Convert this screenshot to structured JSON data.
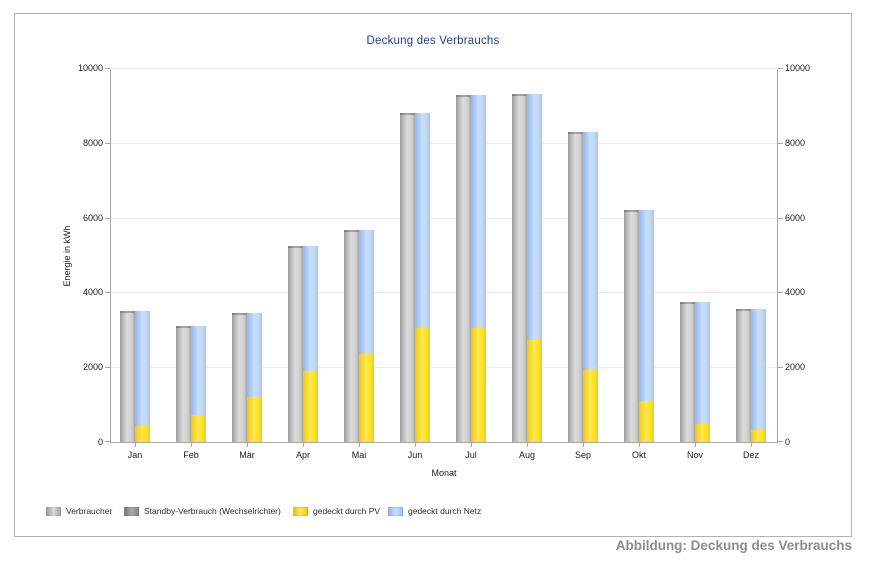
{
  "caption": "Abbildung: Deckung des Verbrauchs",
  "colors": {
    "title": "#1e3c96",
    "caption": "#8c8c8c",
    "verbraucher": "#c3c3c3",
    "standby": "#8a8a8a",
    "pv": "#ffe11a",
    "netz": "#aecdf6",
    "axis": "#a8a8a8",
    "gridline": "#ebebeb"
  },
  "chart_data": {
    "type": "bar",
    "title": "Deckung des Verbrauchs",
    "xlabel": "Monat",
    "ylabel": "Energie in kWh",
    "ylim": [
      0,
      10000
    ],
    "yticks": [
      0,
      2000,
      4000,
      6000,
      8000,
      10000
    ],
    "grid": true,
    "legend_position": "bottom-left",
    "categories": [
      "Jan",
      "Feb",
      "Mär",
      "Apr",
      "Mai",
      "Jun",
      "Jul",
      "Aug",
      "Sep",
      "Okt",
      "Nov",
      "Dez"
    ],
    "bar_groups": [
      {
        "bar": "left",
        "stack_bottom_to_top": [
          "Verbraucher",
          "Standby-Verbrauch (Wechselrichter)"
        ]
      },
      {
        "bar": "right",
        "stack_bottom_to_top": [
          "gedeckt durch PV",
          "gedeckt durch Netz"
        ]
      }
    ],
    "series": [
      {
        "name": "Verbraucher",
        "values": [
          3450,
          3040,
          3400,
          5200,
          5610,
          8760,
          9240,
          9260,
          8230,
          6160,
          3700,
          3500
        ]
      },
      {
        "name": "Standby-Verbrauch (Wechselrichter)",
        "values": [
          50,
          50,
          50,
          50,
          50,
          50,
          50,
          50,
          50,
          50,
          50,
          50
        ]
      },
      {
        "name": "gedeckt durch PV",
        "values": [
          430,
          715,
          1200,
          1900,
          2360,
          3060,
          3050,
          2740,
          1930,
          1100,
          480,
          320
        ]
      },
      {
        "name": "gedeckt durch Netz",
        "values": [
          3070,
          2375,
          2250,
          3350,
          3300,
          5750,
          6240,
          6570,
          6350,
          5110,
          3270,
          3230
        ]
      }
    ]
  },
  "legend": {
    "items": [
      {
        "label": "Verbraucher",
        "swatch": "verbraucher"
      },
      {
        "label": "Standby-Verbrauch (Wechselrichter)",
        "swatch": "standby"
      },
      {
        "label": "gedeckt durch PV",
        "swatch": "pv"
      },
      {
        "label": "gedeckt durch Netz",
        "swatch": "netz"
      }
    ]
  }
}
